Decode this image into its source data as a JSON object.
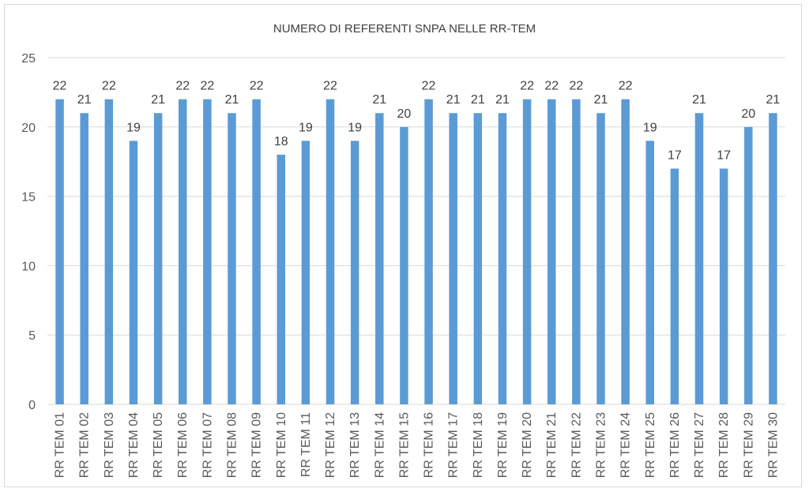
{
  "chart_data": {
    "type": "bar",
    "title": "NUMERO DI REFERENTI SNPA NELLE RR-TEM",
    "xlabel": "",
    "ylabel": "",
    "ylim": [
      0,
      25
    ],
    "yticks": [
      0,
      5,
      10,
      15,
      20,
      25
    ],
    "grid": true,
    "legend": "none",
    "bar_color": "#5b9bd5",
    "categories": [
      "RR TEM 01",
      "RR TEM 02",
      "RR TEM 03",
      "RR TEM 04",
      "RR TEM 05",
      "RR TEM 06",
      "RR TEM 07",
      "RR TEM 08",
      "RR TEM 09",
      "RR TEM 10",
      "RR TEM 11",
      "RR TEM 12",
      "RR TEM 13",
      "RR TEM 14",
      "RR TEM 15",
      "RR TEM 16",
      "RR TEM 17",
      "RR TEM 18",
      "RR TEM 19",
      "RR TEM 20",
      "RR TEM 21",
      "RR TEM 22",
      "RR TEM 23",
      "RR TEM 24",
      "RR TEM 25",
      "RR TEM 26",
      "RR TEM 27",
      "RR TEM 28",
      "RR TEM 29",
      "RR TEM 30"
    ],
    "values": [
      22,
      21,
      22,
      19,
      21,
      22,
      22,
      21,
      22,
      18,
      19,
      22,
      19,
      21,
      20,
      22,
      21,
      21,
      21,
      22,
      22,
      22,
      21,
      22,
      19,
      17,
      21,
      17,
      20,
      21
    ]
  }
}
